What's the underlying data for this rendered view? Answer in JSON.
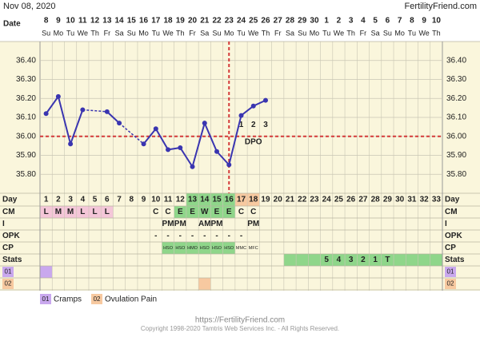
{
  "chart_data": {
    "type": "line",
    "chart_date": "Nov 08, 2020",
    "site": "FertilityFriend.com",
    "date_label": "Date",
    "dates": [
      8,
      9,
      10,
      11,
      12,
      13,
      14,
      15,
      16,
      17,
      18,
      19,
      20,
      21,
      22,
      23,
      24,
      25,
      26,
      27,
      28,
      29,
      30,
      1,
      2,
      3,
      4,
      5,
      6,
      7,
      8,
      9,
      10
    ],
    "weekdays": [
      "Su",
      "Mo",
      "Tu",
      "We",
      "Th",
      "Fr",
      "Sa",
      "Su",
      "Mo",
      "Tu",
      "We",
      "Th",
      "Fr",
      "Sa",
      "Su",
      "Mo",
      "Tu",
      "We",
      "Th",
      "Fr",
      "Sa",
      "Su",
      "Mo",
      "Tu",
      "We",
      "Th",
      "Fr",
      "Sa",
      "Su",
      "Mo",
      "Tu",
      "We",
      "Th"
    ],
    "values": [
      36.12,
      36.21,
      35.96,
      36.14,
      null,
      36.13,
      36.07,
      null,
      35.96,
      36.04,
      35.93,
      35.94,
      35.84,
      36.07,
      35.92,
      35.85,
      36.11,
      36.16,
      36.19,
      null,
      null,
      null,
      null,
      null,
      null,
      null,
      null,
      null,
      null,
      null,
      null,
      null,
      null
    ],
    "color": "#3a35b0",
    "ylim": [
      35.7,
      36.5
    ],
    "yticks": [
      {
        "value": 35.8,
        "label": "35.80"
      },
      {
        "value": 35.9,
        "label": "35.90"
      },
      {
        "value": 36.0,
        "label": "36.00"
      },
      {
        "value": 36.1,
        "label": "36.10"
      },
      {
        "value": 36.2,
        "label": "36.20"
      },
      {
        "value": 36.3,
        "label": "36.30"
      },
      {
        "value": 36.4,
        "label": "36.40"
      }
    ],
    "coverline": 36.0,
    "ovulation_day": 16,
    "dpo": [
      1,
      2,
      3
    ],
    "dpo_label": "DPO",
    "day_label": "Day",
    "days": [
      1,
      2,
      3,
      4,
      5,
      6,
      7,
      8,
      9,
      10,
      11,
      12,
      13,
      14,
      15,
      16,
      17,
      18,
      19,
      20,
      21,
      22,
      23,
      24,
      25,
      26,
      27,
      28,
      29,
      30,
      31,
      32,
      33
    ],
    "day_fills": [
      null,
      null,
      null,
      null,
      null,
      null,
      null,
      null,
      null,
      null,
      null,
      null,
      "#8fd68a",
      "#8fd68a",
      "#8fd68a",
      "#8fd68a",
      "#f7c9a0",
      "#f7c9a0",
      null,
      null,
      null,
      null,
      null,
      null,
      null,
      null,
      null,
      null,
      null,
      null,
      null,
      null,
      null
    ],
    "rows": [
      {
        "label": "CM",
        "cells": [
          "L",
          "M",
          "M",
          "L",
          "L",
          "L",
          null,
          null,
          null,
          "C",
          "C",
          "E",
          "E",
          "W",
          "E",
          "E",
          "C",
          "C",
          null,
          null,
          null,
          null,
          null,
          null,
          null,
          null,
          null,
          null,
          null,
          null,
          null,
          null,
          null
        ],
        "fills": [
          "#f4c6d8",
          "#f4c6d8",
          "#f4c6d8",
          "#f4c6d8",
          "#f4c6d8",
          "#f4c6d8",
          null,
          null,
          null,
          null,
          null,
          "#8fd68a",
          "#8fd68a",
          "#8fd68a",
          "#8fd68a",
          "#8fd68a",
          null,
          null,
          null,
          null,
          null,
          null,
          null,
          null,
          null,
          null,
          null,
          null,
          null,
          null,
          null,
          null,
          null
        ]
      },
      {
        "label": "I",
        "cells": [
          null,
          null,
          null,
          null,
          null,
          null,
          null,
          null,
          null,
          null,
          "PM",
          "PM",
          null,
          "AM",
          "PM",
          null,
          null,
          "PM",
          null,
          null,
          null,
          null,
          null,
          null,
          null,
          null,
          null,
          null,
          null,
          null,
          null,
          null,
          null
        ],
        "fills": [
          null,
          null,
          null,
          null,
          null,
          null,
          null,
          null,
          null,
          null,
          null,
          null,
          null,
          null,
          null,
          null,
          null,
          null,
          null,
          null,
          null,
          null,
          null,
          null,
          null,
          null,
          null,
          null,
          null,
          null,
          null,
          null,
          null
        ]
      },
      {
        "label": "OPK",
        "cells": [
          null,
          null,
          null,
          null,
          null,
          null,
          null,
          null,
          null,
          "-",
          "-",
          "-",
          "-",
          "-",
          "-",
          "-",
          "-",
          null,
          null,
          null,
          null,
          null,
          null,
          null,
          null,
          null,
          null,
          null,
          null,
          null,
          null,
          null,
          null
        ],
        "fills": [
          null,
          null,
          null,
          null,
          null,
          null,
          null,
          null,
          null,
          null,
          null,
          null,
          null,
          null,
          null,
          null,
          null,
          null,
          null,
          null,
          null,
          null,
          null,
          null,
          null,
          null,
          null,
          null,
          null,
          null,
          null,
          null,
          null
        ]
      },
      {
        "label": "CP",
        "cells": [
          null,
          null,
          null,
          null,
          null,
          null,
          null,
          null,
          null,
          null,
          "HSO",
          "HSO",
          "HMO",
          "HSO",
          "HSO",
          "HSO",
          "MMC",
          "MFC",
          null,
          null,
          null,
          null,
          null,
          null,
          null,
          null,
          null,
          null,
          null,
          null,
          null,
          null,
          null
        ],
        "fills": [
          null,
          null,
          null,
          null,
          null,
          null,
          null,
          null,
          null,
          null,
          "#8fd68a",
          "#8fd68a",
          "#8fd68a",
          "#8fd68a",
          "#8fd68a",
          "#8fd68a",
          null,
          null,
          null,
          null,
          null,
          null,
          null,
          null,
          null,
          null,
          null,
          null,
          null,
          null,
          null,
          null,
          null
        ]
      },
      {
        "label": "Stats",
        "cells": [
          null,
          null,
          null,
          null,
          null,
          null,
          null,
          null,
          null,
          null,
          null,
          null,
          null,
          null,
          null,
          null,
          null,
          null,
          null,
          null,
          null,
          null,
          null,
          "5",
          "4",
          "3",
          "2",
          "1",
          "T",
          null,
          null,
          null,
          null
        ],
        "fills": [
          null,
          null,
          null,
          null,
          null,
          null,
          null,
          null,
          null,
          null,
          null,
          null,
          null,
          null,
          null,
          null,
          null,
          null,
          null,
          null,
          "#8fd68a",
          "#8fd68a",
          "#8fd68a",
          "#8fd68a",
          "#8fd68a",
          "#8fd68a",
          "#8fd68a",
          "#8fd68a",
          "#8fd68a",
          "#8fd68a",
          "#8fd68a",
          "#8fd68a",
          "#8fd68a"
        ]
      },
      {
        "label": "01",
        "label_fill": "#c9a8ee",
        "cells": [
          null,
          null,
          null,
          null,
          null,
          null,
          null,
          null,
          null,
          null,
          null,
          null,
          null,
          null,
          null,
          null,
          null,
          null,
          null,
          null,
          null,
          null,
          null,
          null,
          null,
          null,
          null,
          null,
          null,
          null,
          null,
          null,
          null
        ],
        "fills": [
          "#c9a8ee",
          null,
          null,
          null,
          null,
          null,
          null,
          null,
          null,
          null,
          null,
          null,
          null,
          null,
          null,
          null,
          null,
          null,
          null,
          null,
          null,
          null,
          null,
          null,
          null,
          null,
          null,
          null,
          null,
          null,
          null,
          null,
          null
        ]
      },
      {
        "label": "02",
        "label_fill": "#f7c9a0",
        "cells": [
          null,
          null,
          null,
          null,
          null,
          null,
          null,
          null,
          null,
          null,
          null,
          null,
          null,
          null,
          null,
          null,
          null,
          null,
          null,
          null,
          null,
          null,
          null,
          null,
          null,
          null,
          null,
          null,
          null,
          null,
          null,
          null,
          null
        ],
        "fills": [
          null,
          null,
          null,
          null,
          null,
          null,
          null,
          null,
          null,
          null,
          null,
          null,
          null,
          "#f7c9a0",
          null,
          null,
          null,
          null,
          null,
          null,
          null,
          null,
          null,
          null,
          null,
          null,
          null,
          null,
          null,
          null,
          null,
          null,
          null
        ]
      }
    ],
    "legend": [
      {
        "code": "01",
        "name": "Cramps",
        "color": "#c9a8ee"
      },
      {
        "code": "02",
        "name": "Ovulation Pain",
        "color": "#f7c9a0"
      }
    ],
    "footer_url": "https://FertilityFriend.com",
    "copyright": "Copyright 1998-2020 Tamtris Web Services Inc. - All Rights Reserved."
  }
}
